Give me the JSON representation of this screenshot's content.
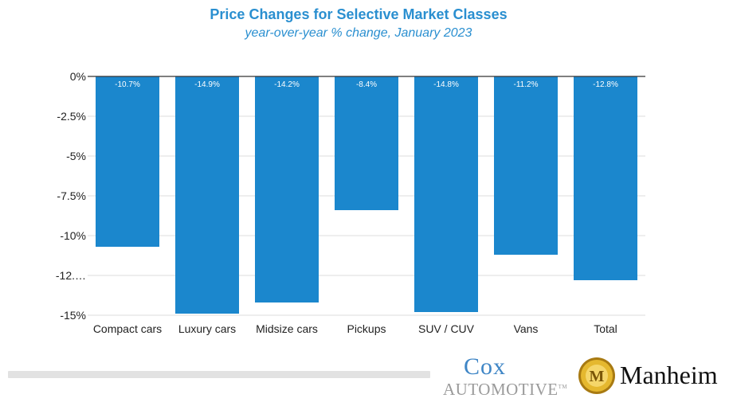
{
  "header": {
    "title": "Price Changes for Selective Market Classes",
    "subtitle": "year-over-year % change, January 2023"
  },
  "chart_data": {
    "type": "bar",
    "title": "Price Changes for Selective Market Classes",
    "subtitle": "year-over-year % change, January 2023",
    "categories": [
      "Compact cars",
      "Luxury cars",
      "Midsize cars",
      "Pickups",
      "SUV / CUV",
      "Vans",
      "Total"
    ],
    "values": [
      -10.7,
      -14.9,
      -14.2,
      -8.4,
      -14.8,
      -11.2,
      -12.8
    ],
    "value_labels": [
      "-10.7%",
      "-14.9%",
      "-14.2%",
      "-8.4%",
      "-14.8%",
      "-11.2%",
      "-12.8%"
    ],
    "yticks": [
      0,
      -2.5,
      -5,
      -7.5,
      -10,
      -12.5,
      -15
    ],
    "ytick_labels": [
      "0%",
      "-2.5%",
      "-5%",
      "-7.5%",
      "-10%",
      "-12.…",
      "-15%"
    ],
    "ylim": [
      -15,
      0
    ],
    "grid": true,
    "bar_color": "#1b87cd",
    "value_label_color": "#ffffff"
  },
  "footer": {
    "cox_line1": "Cox",
    "cox_line2": "AUTOMOTIVE",
    "cox_tm": "TM",
    "manheim_badge_letter": "M",
    "manheim_name": "Manheim"
  },
  "colors": {
    "accent": "#2a8fd0",
    "bar": "#1b87cd",
    "cox_blue": "#3f86c6",
    "manheim_gold": "#d4a21c"
  }
}
